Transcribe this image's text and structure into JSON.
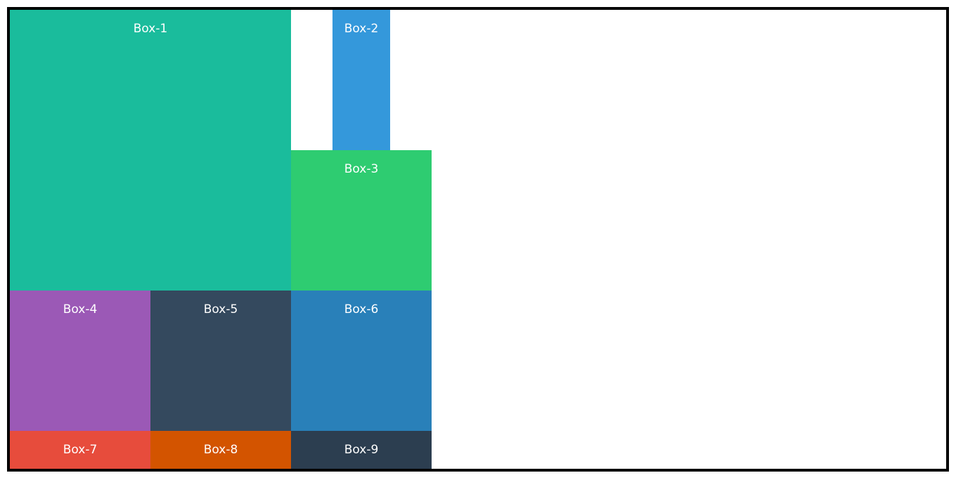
{
  "boxes": [
    {
      "label": "Box-1",
      "color": "#1abc9c"
    },
    {
      "label": "Box-2",
      "color": "#3498db"
    },
    {
      "label": "Box-3",
      "color": "#2ecc71"
    },
    {
      "label": "Box-4",
      "color": "#9b59b6"
    },
    {
      "label": "Box-5",
      "color": "#34495e"
    },
    {
      "label": "Box-6",
      "color": "#2980b9"
    },
    {
      "label": "Box-7",
      "color": "#e74c3c"
    },
    {
      "label": "Box-8",
      "color": "#d35400"
    },
    {
      "label": "Box-9",
      "color": "#2c3e50"
    }
  ],
  "frame": {
    "border_color": "#000000",
    "background": "#ffffff"
  }
}
